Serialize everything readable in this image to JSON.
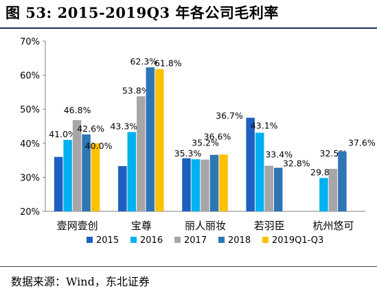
{
  "figure": {
    "title": "图 53:  2015-2019Q3 年各公司毛利率",
    "source": "数据来源：Wind，东北证券"
  },
  "chart_data": {
    "type": "bar",
    "title": "",
    "xlabel": "",
    "ylabel": "",
    "categories": [
      "壹网壹创",
      "宝尊",
      "丽人丽妆",
      "若羽臣",
      "杭州悠可"
    ],
    "ylim": [
      20,
      70
    ],
    "yticks": [
      "20%",
      "30%",
      "40%",
      "50%",
      "60%",
      "70%"
    ],
    "series": [
      {
        "name": "2015",
        "color": "#1f5fbf",
        "values": [
          36.0,
          33.3,
          35.6,
          47.5,
          null
        ],
        "labels": [
          null,
          null,
          null,
          null,
          null
        ]
      },
      {
        "name": "2016",
        "color": "#00b0f0",
        "values": [
          41.0,
          43.3,
          35.3,
          43.1,
          29.8
        ],
        "labels": [
          "41.0%",
          "43.3%",
          "35.3%",
          "43.1%",
          "29.8%"
        ]
      },
      {
        "name": "2017",
        "color": "#a6a6a6",
        "values": [
          46.8,
          53.8,
          35.2,
          33.4,
          32.5
        ],
        "labels": [
          "46.8%",
          "53.8%",
          "35.2%",
          "33.4%",
          "32.5%"
        ]
      },
      {
        "name": "2018",
        "color": "#2e75b6",
        "values": [
          42.6,
          62.3,
          36.6,
          32.8,
          37.6
        ],
        "labels": [
          "42.6%",
          "62.3%",
          "36.6%",
          "32.8%",
          "37.6%"
        ]
      },
      {
        "name": "2019Q1-Q3",
        "color": "#ffc000",
        "values": [
          40.0,
          61.8,
          36.7,
          null,
          null
        ],
        "labels": [
          "40.0%",
          "61.8%",
          "36.7%",
          null,
          null
        ]
      }
    ],
    "grid": false,
    "legend_position": "bottom"
  }
}
